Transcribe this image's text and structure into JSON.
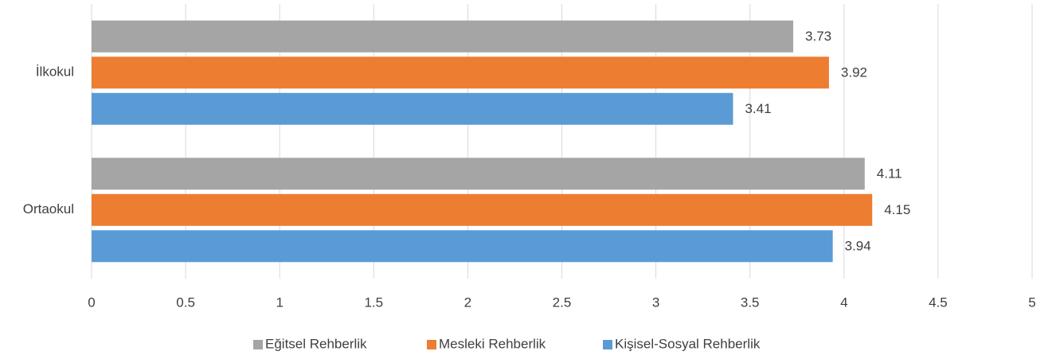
{
  "chart_data": {
    "type": "bar",
    "orientation": "horizontal",
    "categories": [
      "İlkokul",
      "Ortaokul"
    ],
    "series": [
      {
        "name": "Eğitsel Rehberlik",
        "color": "#a5a5a5",
        "values": [
          3.73,
          4.11
        ]
      },
      {
        "name": "Mesleki Rehberlik",
        "color": "#ed7d31",
        "values": [
          3.92,
          4.15
        ]
      },
      {
        "name": "Kişisel-Sosyal Rehberlik",
        "color": "#5b9bd5",
        "values": [
          3.41,
          3.94
        ]
      }
    ],
    "xlim": [
      0,
      5
    ],
    "xticks": [
      0,
      0.5,
      1,
      1.5,
      2,
      2.5,
      3,
      3.5,
      4,
      4.5,
      5
    ],
    "grid": true,
    "legend": "bottom"
  }
}
